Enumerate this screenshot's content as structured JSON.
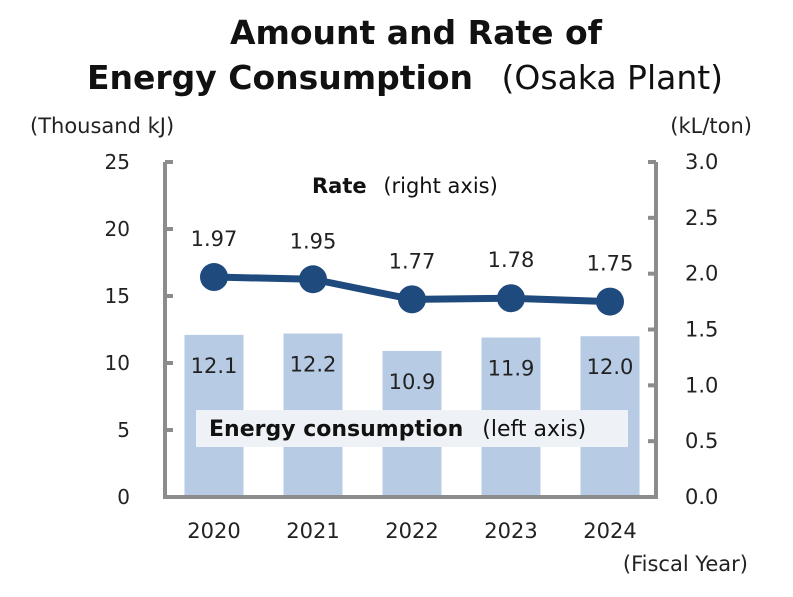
{
  "chart_data": {
    "type": "bar",
    "title": {
      "line1": "Amount and Rate of",
      "line2_bold": "Energy Consumption",
      "line2_rest": "(Osaka Plant)"
    },
    "left_unit": "(Thousand kJ)",
    "right_unit": "(kL/ton)",
    "x_label": "(Fiscal Year)",
    "categories": [
      "2020",
      "2021",
      "2022",
      "2023",
      "2024"
    ],
    "left_ticks": [
      "0",
      "5",
      "10",
      "15",
      "20",
      "25"
    ],
    "right_ticks": [
      "0.0",
      "0.5",
      "1.0",
      "1.5",
      "2.0",
      "2.5",
      "3.0"
    ],
    "left_ylim": [
      0,
      25
    ],
    "right_ylim": [
      0,
      3.0
    ],
    "series": [
      {
        "name": "Energy consumption",
        "type": "bar",
        "axis": "left",
        "values": [
          12.1,
          12.2,
          10.9,
          11.9,
          12.0
        ],
        "labels": [
          "12.1",
          "12.2",
          "10.9",
          "11.9",
          "12.0"
        ],
        "legend_bold": "Energy consumption",
        "legend_rest": "(left axis)",
        "color": "#b7cbe4"
      },
      {
        "name": "Rate",
        "type": "line",
        "axis": "right",
        "values": [
          1.97,
          1.95,
          1.77,
          1.78,
          1.75
        ],
        "labels": [
          "1.97",
          "1.95",
          "1.77",
          "1.78",
          "1.75"
        ],
        "legend_bold": "Rate",
        "legend_rest": "(right axis)",
        "color": "#1f4a7e"
      }
    ],
    "axis_color": "#8c8c8c"
  }
}
